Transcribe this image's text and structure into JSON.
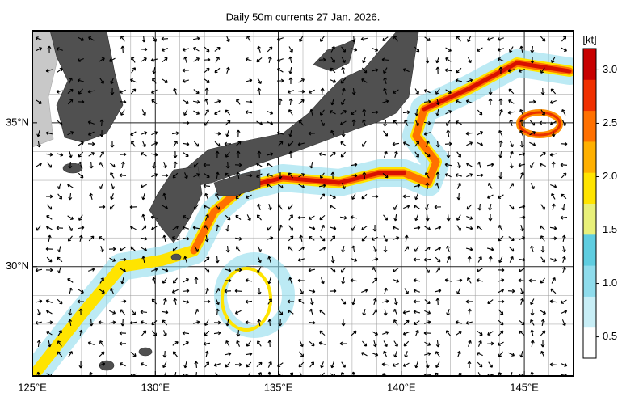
{
  "title": "Daily 50m currents 27 Jan. 2026.",
  "map": {
    "xlim": [
      125,
      147
    ],
    "ylim": [
      26.2,
      38.2
    ],
    "lon_ticks": [
      {
        "value": 125,
        "label": "125°E"
      },
      {
        "value": 130,
        "label": "130°E"
      },
      {
        "value": 135,
        "label": "135°E"
      },
      {
        "value": 140,
        "label": "140°E"
      },
      {
        "value": 145,
        "label": "145°E"
      }
    ],
    "lat_ticks": [
      {
        "value": 30,
        "label": "30°N"
      },
      {
        "value": 35,
        "label": "35°N"
      }
    ]
  },
  "colorbar": {
    "label": "[kt]",
    "lim": [
      0.3,
      3.2
    ],
    "ticks": [
      0.5,
      {
        "value": 1,
        "label": "1.0"
      },
      1.5,
      {
        "value": 2,
        "label": "2.0"
      },
      2.5,
      {
        "value": 3,
        "label": "3.0"
      }
    ],
    "colors": [
      "#ffffff",
      "#c8eef6",
      "#8fdcec",
      "#5fcde0",
      "#e8f07a",
      "#ffe400",
      "#ffb000",
      "#ff7000",
      "#f03000",
      "#c80000"
    ]
  }
}
